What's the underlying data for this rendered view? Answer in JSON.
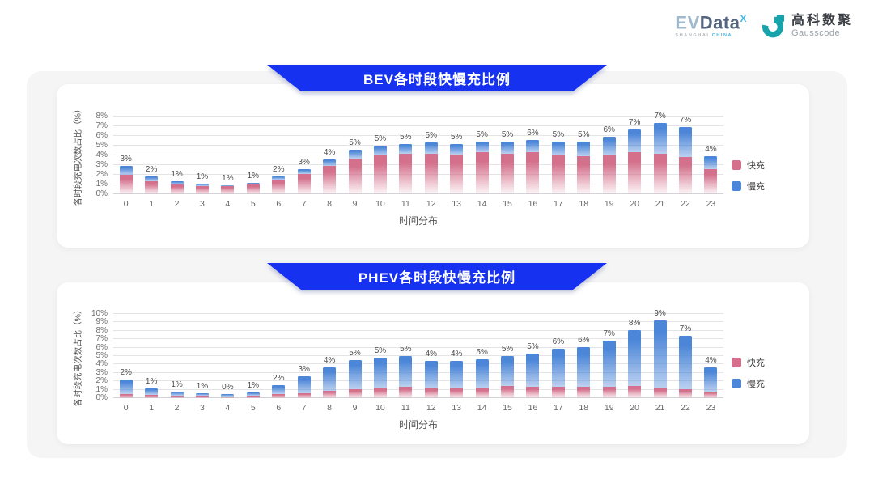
{
  "header": {
    "evdata": {
      "part1": "EV",
      "part2": "Data",
      "sup": "X",
      "sub1": "SHANGHAI",
      "sub2": "CHINA"
    },
    "gausscode": {
      "name_cn": "高科数聚",
      "name_en": "Gausscode"
    }
  },
  "colors": {
    "banner_blue": "#1632f0",
    "fast_pink": "#d4708c",
    "slow_blue": "#4c86d8",
    "panel_gray": "#f5f5f6",
    "gausscode_teal": "#16a3ab"
  },
  "chart_data": [
    {
      "type": "bar",
      "stacked": true,
      "title": "BEV各时段快慢充比例",
      "xlabel": "时间分布",
      "ylabel": "各时段充电次数占比（%）",
      "ylim": [
        0,
        8
      ],
      "ytick_step": 1,
      "ytick_suffix": "%",
      "grid": true,
      "legend_position": "right",
      "categories": [
        "0",
        "1",
        "2",
        "3",
        "4",
        "5",
        "6",
        "7",
        "8",
        "9",
        "10",
        "11",
        "12",
        "13",
        "14",
        "15",
        "16",
        "17",
        "18",
        "19",
        "20",
        "21",
        "22",
        "23"
      ],
      "series": [
        {
          "name": "快充",
          "color": "#d4708c",
          "values": [
            2.0,
            1.3,
            1.0,
            0.85,
            0.8,
            1.0,
            1.5,
            2.1,
            2.9,
            3.7,
            4.0,
            4.2,
            4.2,
            4.1,
            4.3,
            4.2,
            4.3,
            4.0,
            3.9,
            4.0,
            4.3,
            4.2,
            3.8,
            2.6
          ]
        },
        {
          "name": "慢充",
          "color": "#4c86d8",
          "values": [
            0.9,
            0.5,
            0.3,
            0.25,
            0.15,
            0.2,
            0.3,
            0.5,
            0.7,
            0.9,
            1.0,
            1.0,
            1.1,
            1.1,
            1.1,
            1.2,
            1.3,
            1.4,
            1.5,
            1.9,
            2.4,
            3.1,
            3.1,
            1.3
          ]
        }
      ],
      "total_labels": [
        "3%",
        "2%",
        "1%",
        "1%",
        "1%",
        "1%",
        "2%",
        "3%",
        "4%",
        "5%",
        "5%",
        "5%",
        "5%",
        "5%",
        "5%",
        "5%",
        "6%",
        "5%",
        "5%",
        "6%",
        "7%",
        "7%",
        "7%",
        "4%"
      ]
    },
    {
      "type": "bar",
      "stacked": true,
      "title": "PHEV各时段快慢充比例",
      "xlabel": "时间分布",
      "ylabel": "各时段充电次数占比（%）",
      "ylim": [
        0,
        10
      ],
      "ytick_step": 1,
      "ytick_suffix": "%",
      "grid": true,
      "legend_position": "right",
      "categories": [
        "0",
        "1",
        "2",
        "3",
        "4",
        "5",
        "6",
        "7",
        "8",
        "9",
        "10",
        "11",
        "12",
        "13",
        "14",
        "15",
        "16",
        "17",
        "18",
        "19",
        "20",
        "21",
        "22",
        "23"
      ],
      "series": [
        {
          "name": "快充",
          "color": "#d4708c",
          "values": [
            0.45,
            0.4,
            0.3,
            0.25,
            0.2,
            0.25,
            0.45,
            0.6,
            0.9,
            1.1,
            1.2,
            1.3,
            1.2,
            1.2,
            1.2,
            1.4,
            1.3,
            1.3,
            1.3,
            1.3,
            1.4,
            1.2,
            1.1,
            0.8
          ]
        },
        {
          "name": "慢充",
          "color": "#4c86d8",
          "values": [
            1.75,
            0.8,
            0.5,
            0.35,
            0.25,
            0.45,
            1.1,
            2.0,
            2.8,
            3.4,
            3.6,
            3.7,
            3.2,
            3.2,
            3.4,
            3.6,
            4.0,
            4.6,
            4.8,
            5.5,
            6.7,
            8.0,
            6.3,
            2.9
          ]
        }
      ],
      "total_labels": [
        "2%",
        "1%",
        "1%",
        "1%",
        "0%",
        "1%",
        "2%",
        "3%",
        "4%",
        "5%",
        "5%",
        "5%",
        "4%",
        "4%",
        "5%",
        "5%",
        "5%",
        "6%",
        "6%",
        "7%",
        "8%",
        "9%",
        "7%",
        "4%"
      ]
    }
  ]
}
